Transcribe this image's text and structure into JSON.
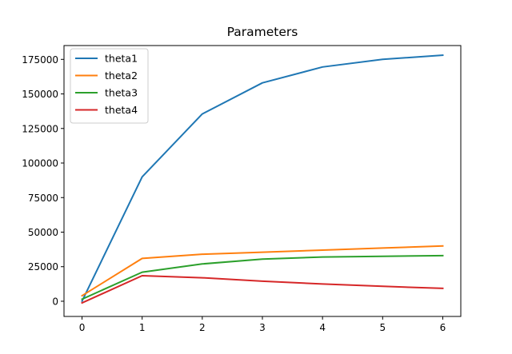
{
  "chart_data": {
    "type": "line",
    "title": "Parameters",
    "xlabel": "",
    "ylabel": "",
    "x": [
      0,
      1,
      2,
      3,
      4,
      5,
      6
    ],
    "xticks": [
      "0",
      "1",
      "2",
      "3",
      "4",
      "5",
      "6"
    ],
    "yticks": [
      "0",
      "25000",
      "50000",
      "75000",
      "100000",
      "125000",
      "150000",
      "175000"
    ],
    "ylim": [
      -11000,
      185000
    ],
    "xlim": [
      -0.3,
      6.3
    ],
    "grid": false,
    "legend_position": "top-left",
    "series": [
      {
        "name": "theta1",
        "color": "#1f77b4",
        "values": [
          100,
          90000,
          135500,
          158000,
          169500,
          175000,
          178000
        ]
      },
      {
        "name": "theta2",
        "color": "#ff7f0e",
        "values": [
          4000,
          31000,
          34000,
          35500,
          37000,
          38500,
          40000
        ]
      },
      {
        "name": "theta3",
        "color": "#2ca02c",
        "values": [
          1500,
          21000,
          27000,
          30500,
          32000,
          32500,
          33000
        ]
      },
      {
        "name": "theta4",
        "color": "#d62728",
        "values": [
          -1200,
          18500,
          17000,
          14500,
          12500,
          10800,
          9300
        ]
      }
    ]
  }
}
